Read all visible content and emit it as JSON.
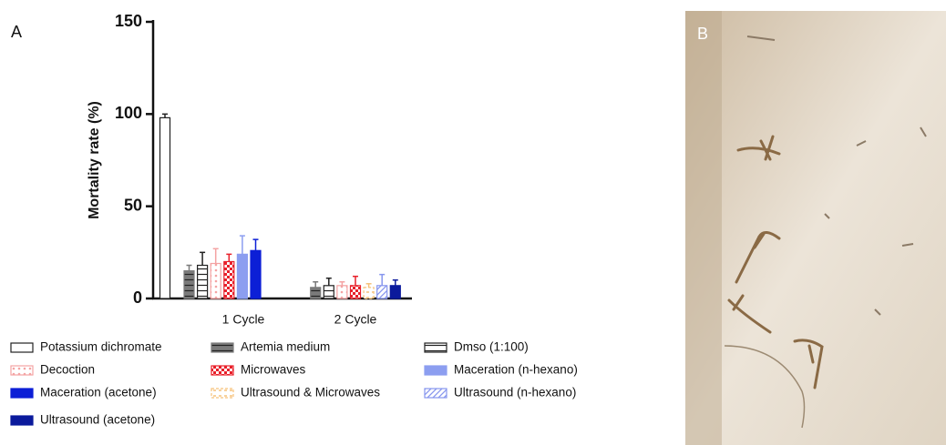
{
  "panel_a_label": "A",
  "panel_b_label": "B",
  "chart_data": {
    "type": "bar",
    "y_label": "Mortality rate (%)",
    "categories": [
      null,
      "1 Cycle",
      "2 Cycle"
    ],
    "ylim": [
      0,
      150
    ],
    "yticks": [
      0,
      50,
      100,
      150
    ],
    "series": [
      {
        "name": "Potassium dichromate",
        "color": "#ffffff",
        "pattern": "open",
        "values": [
          98,
          null,
          null
        ],
        "errors": [
          2,
          null,
          null
        ]
      },
      {
        "name": "Artemia medium",
        "color": "#7a7a7a",
        "pattern": "hlines",
        "values": [
          null,
          15,
          6
        ],
        "errors": [
          null,
          3,
          3
        ]
      },
      {
        "name": "Dmso (1:100)",
        "color": "#ffffff",
        "pattern": "hlines",
        "values": [
          null,
          18,
          7
        ],
        "errors": [
          null,
          7,
          4
        ]
      },
      {
        "name": "Decoction",
        "color": "#f4a3a3",
        "pattern": "dots",
        "values": [
          null,
          19,
          7
        ],
        "errors": [
          null,
          8,
          2
        ]
      },
      {
        "name": "Microwaves",
        "color": "#e8202a",
        "pattern": "checker",
        "values": [
          null,
          20,
          7
        ],
        "errors": [
          null,
          4,
          5
        ]
      },
      {
        "name": "Maceration (n-hexano)",
        "color": "#8c9ef0",
        "pattern": "solid",
        "values": [
          null,
          24,
          null
        ],
        "errors": [
          null,
          10,
          null
        ]
      },
      {
        "name": "Maceration (acetone)",
        "color": "#0c1fd6",
        "pattern": "solid",
        "values": [
          null,
          26,
          null
        ],
        "errors": [
          null,
          6,
          null
        ]
      },
      {
        "name": "Ultrasound & Microwaves",
        "color": "#f6c27a",
        "pattern": "dashed",
        "values": [
          null,
          null,
          6
        ],
        "errors": [
          null,
          null,
          2
        ]
      },
      {
        "name": "Ultrasound (n-hexano)",
        "color": "#8796ee",
        "pattern": "diagonal",
        "values": [
          null,
          null,
          7
        ],
        "errors": [
          null,
          null,
          6
        ]
      },
      {
        "name": "Ultrasound (acetone)",
        "color": "#0b1a9c",
        "pattern": "solid",
        "values": [
          null,
          null,
          7
        ],
        "errors": [
          null,
          null,
          3
        ]
      }
    ]
  }
}
